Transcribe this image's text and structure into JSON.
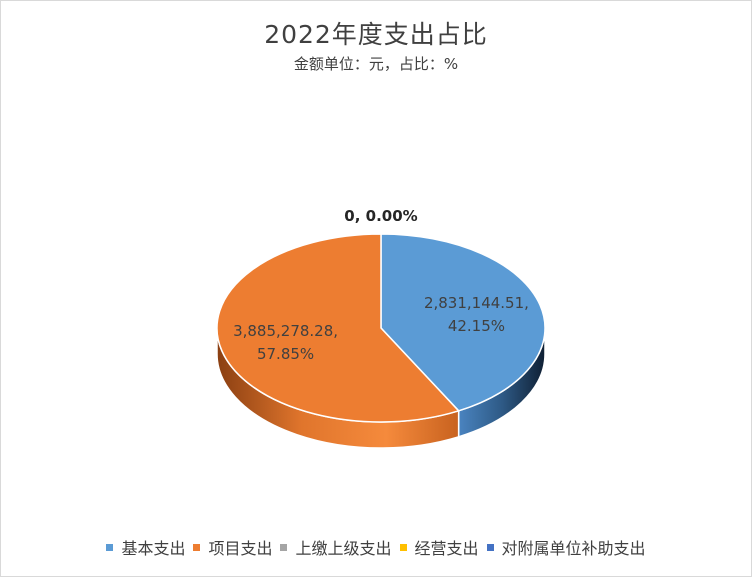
{
  "chart_data": {
    "type": "pie",
    "title": "2022年度支出占比",
    "subtitle": "金额单位：元，占比：%",
    "legend_position": "bottom",
    "categories": [
      "基本支出",
      "项目支出",
      "上缴上级支出",
      "经营支出",
      "对附属单位补助支出"
    ],
    "values": [
      2831144.51,
      3885278.28,
      0,
      0,
      0
    ],
    "percents": [
      42.15,
      57.85,
      0,
      0,
      0
    ],
    "colors": [
      "#5b9bd5",
      "#ed7d31",
      "#a5a5a5",
      "#ffc000",
      "#4472c4"
    ],
    "data_labels": [
      {
        "line1": "2,831,144.51,",
        "line2": "42.15%"
      },
      {
        "line1": "3,885,278.28,",
        "line2": "57.85%"
      },
      {
        "line1": "0, 0.00%",
        "line2": ""
      }
    ]
  }
}
